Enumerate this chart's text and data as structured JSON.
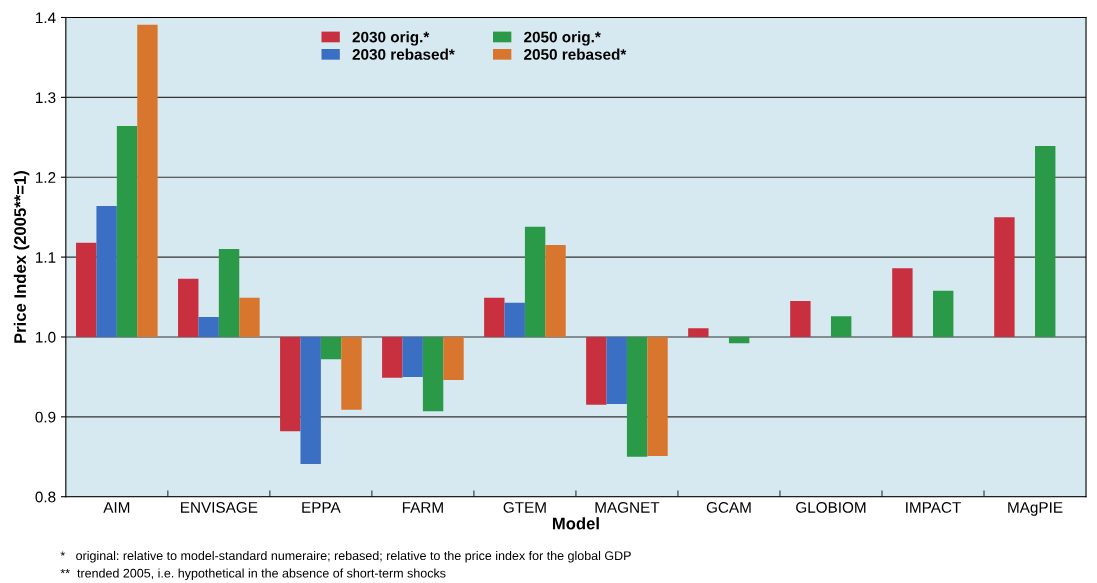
{
  "chart_data": {
    "type": "bar",
    "xlabel": "Model",
    "ylabel": "Price Index (2005**=1)",
    "categories": [
      "AIM",
      "ENVISAGE",
      "EPPA",
      "FARM",
      "GTEM",
      "MAGNET",
      "GCAM",
      "GLOBIOM",
      "IMPACT",
      "MAgPIE"
    ],
    "series": [
      {
        "name": "2030 orig.*",
        "color": "#c8303f",
        "base": [
          1,
          1,
          1,
          1,
          1,
          1,
          1,
          1,
          1,
          1
        ],
        "values": [
          0.118,
          0.073,
          -0.118,
          -0.051,
          0.049,
          -0.085,
          0.011,
          0.045,
          0.086,
          0.15
        ]
      },
      {
        "name": "2030 rebased*",
        "color": "#3a6fc4",
        "base": [
          1,
          1,
          1,
          1,
          1,
          1,
          null,
          null,
          null,
          null
        ],
        "values": [
          0.164,
          0.025,
          -0.159,
          -0.05,
          0.043,
          -0.084,
          null,
          null,
          null,
          null
        ]
      },
      {
        "name": "2050 orig.*",
        "color": "#2a9a48",
        "base": [
          1,
          1,
          1,
          1,
          1,
          1,
          1,
          1,
          1,
          1
        ],
        "values": [
          0.264,
          0.11,
          -0.028,
          -0.093,
          0.138,
          -0.15,
          -0.008,
          0.026,
          0.058,
          0.239
        ]
      },
      {
        "name": "2050 rebased*",
        "color": "#d8762e",
        "base": [
          1,
          1,
          1,
          1,
          1,
          1,
          null,
          null,
          null,
          null
        ],
        "values": [
          0.391,
          0.049,
          -0.091,
          -0.054,
          0.115,
          -0.149,
          null,
          null,
          null,
          null
        ]
      }
    ],
    "ylim": [
      0.8,
      1.4
    ],
    "yticks": [
      {
        "value": 0.8,
        "label": "0.8"
      },
      {
        "value": 0.9,
        "label": "0.9"
      },
      {
        "value": 1.0,
        "label": "1.0"
      },
      {
        "value": 1.1,
        "label": "1.1"
      },
      {
        "value": 1.2,
        "label": "1.2"
      },
      {
        "value": 1.3,
        "label": "1.3"
      },
      {
        "value": 1.4,
        "label": "1.4"
      }
    ],
    "grid": "y",
    "legend": "top",
    "annotations": [
      "*   original: relative to model-standard numeraire; rebased; relative to the price index for the global GDP",
      "**  trended 2005, i.e. hypothetical in the absence of short-term shocks"
    ]
  }
}
